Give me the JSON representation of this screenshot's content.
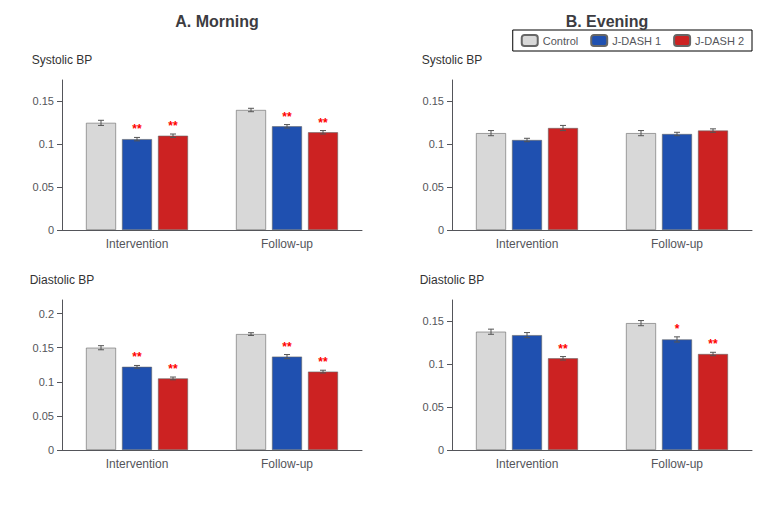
{
  "chart_data": [
    {
      "type": "bar",
      "title": "A. Morning",
      "ylabel": "Systolic BP",
      "categories": [
        "Intervention",
        "Follow-up"
      ],
      "series": [
        {
          "name": "Control",
          "color": "#d8d8d8",
          "values": [
            0.125,
            0.14
          ],
          "errors": [
            0.003,
            0.002
          ],
          "annotations": [
            null,
            null
          ]
        },
        {
          "name": "J-DASH 1",
          "color": "#1f50b0",
          "values": [
            0.106,
            0.121
          ],
          "errors": [
            0.002,
            0.002
          ],
          "annotations": [
            "**",
            "**"
          ]
        },
        {
          "name": "J-DASH 2",
          "color": "#cc2222",
          "values": [
            0.11,
            0.114
          ],
          "errors": [
            0.002,
            0.002
          ],
          "annotations": [
            "**",
            "**"
          ]
        }
      ],
      "ylim": [
        0,
        0.175
      ],
      "yticks": [
        0,
        0.05,
        0.1,
        0.15
      ],
      "grid": false
    },
    {
      "type": "bar",
      "title": "B. Evening",
      "ylabel": "Systolic BP",
      "categories": [
        "Intervention",
        "Follow-up"
      ],
      "series": [
        {
          "name": "Control",
          "color": "#d8d8d8",
          "values": [
            0.113,
            0.113
          ],
          "errors": [
            0.003,
            0.003
          ]
        },
        {
          "name": "J-DASH 1",
          "color": "#1f50b0",
          "values": [
            0.105,
            0.112
          ],
          "errors": [
            0.002,
            0.002
          ]
        },
        {
          "name": "J-DASH 2",
          "color": "#cc2222",
          "values": [
            0.119,
            0.116
          ],
          "errors": [
            0.003,
            0.002
          ]
        }
      ],
      "ylim": [
        0,
        0.175
      ],
      "yticks": [
        0,
        0.05,
        0.1,
        0.15
      ],
      "grid": false,
      "legend": "upper right"
    },
    {
      "type": "bar",
      "ylabel": "Diastolic BP",
      "categories": [
        "Intervention",
        "Follow-up"
      ],
      "series": [
        {
          "name": "Control",
          "color": "#d8d8d8",
          "values": [
            0.15,
            0.17
          ],
          "errors": [
            0.003,
            0.002
          ],
          "annotations": [
            null,
            null
          ]
        },
        {
          "name": "J-DASH 1",
          "color": "#1f50b0",
          "values": [
            0.122,
            0.137
          ],
          "errors": [
            0.002,
            0.003
          ],
          "annotations": [
            "**",
            "**"
          ]
        },
        {
          "name": "J-DASH 2",
          "color": "#cc2222",
          "values": [
            0.105,
            0.115
          ],
          "errors": [
            0.002,
            0.002
          ],
          "annotations": [
            "**",
            "**"
          ]
        }
      ],
      "ylim": [
        0,
        0.22
      ],
      "yticks": [
        0,
        0.05,
        0.1,
        0.15,
        0.2
      ],
      "grid": false
    },
    {
      "type": "bar",
      "ylabel": "Diastolic BP",
      "categories": [
        "Intervention",
        "Follow-up"
      ],
      "series": [
        {
          "name": "Control",
          "color": "#d8d8d8",
          "values": [
            0.138,
            0.148
          ],
          "errors": [
            0.003,
            0.003
          ],
          "annotations": [
            null,
            null
          ]
        },
        {
          "name": "J-DASH 1",
          "color": "#1f50b0",
          "values": [
            0.134,
            0.129
          ],
          "errors": [
            0.003,
            0.003
          ],
          "annotations": [
            null,
            "*"
          ]
        },
        {
          "name": "J-DASH 2",
          "color": "#cc2222",
          "values": [
            0.107,
            0.112
          ],
          "errors": [
            0.002,
            0.002
          ],
          "annotations": [
            "**",
            "**"
          ]
        }
      ],
      "ylim": [
        0,
        0.175
      ],
      "yticks": [
        0,
        0.05,
        0.1,
        0.15
      ],
      "grid": false
    }
  ]
}
